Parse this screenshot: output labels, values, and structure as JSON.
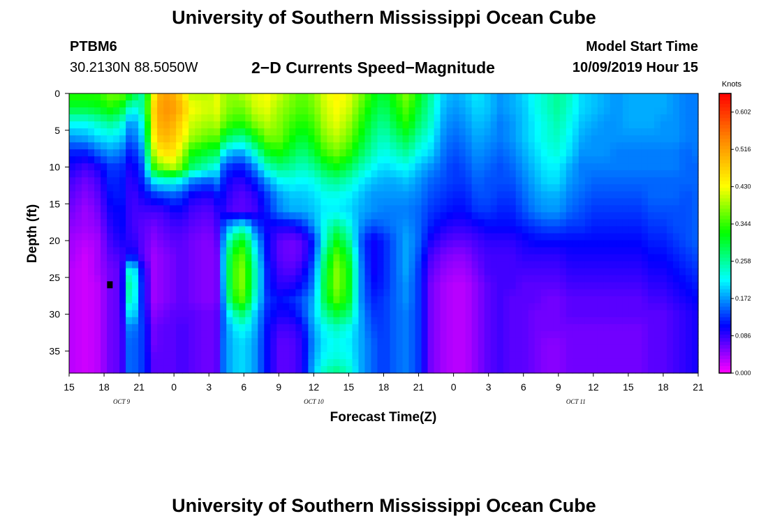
{
  "header": {
    "title_top": "University of Southern Mississippi Ocean Cube",
    "title_bottom": "University of Southern Mississippi Ocean Cube",
    "station": "PTBM6",
    "coords": "30.2130N 88.5050W",
    "chart_title": "2−D Currents Speed−Magnitude",
    "model_label": "Model Start Time",
    "model_time": "10/09/2019 Hour 15"
  },
  "chart_data": {
    "type": "heatmap",
    "title": "2−D Currents Speed−Magnitude",
    "xlabel": "Forecast Time(Z)",
    "ylabel": "Depth (ft)",
    "x_tick_labels": [
      "15",
      "18",
      "21",
      "0",
      "3",
      "6",
      "9",
      "12",
      "15",
      "18",
      "21",
      "0",
      "3",
      "6",
      "9",
      "12",
      "15",
      "18",
      "21"
    ],
    "x_range_hours": [
      0,
      54
    ],
    "date_labels": [
      {
        "text": "OCT 9",
        "hour": 4.5
      },
      {
        "text": "OCT 10",
        "hour": 21
      },
      {
        "text": "OCT 11",
        "hour": 43.5
      }
    ],
    "y_ticks": [
      0,
      5,
      10,
      15,
      20,
      25,
      30,
      35
    ],
    "ylim": [
      0,
      38
    ],
    "colorbar": {
      "label": "Knots",
      "ticks": [
        "0.602",
        "0.516",
        "0.430",
        "0.344",
        "0.258",
        "0.172",
        "0.086",
        "0.000"
      ],
      "range": [
        0,
        0.645
      ],
      "colors": [
        "#ff00ff",
        "#0000ff",
        "#00ffff",
        "#00ff00",
        "#ffff00",
        "#ff8800",
        "#ff0000"
      ]
    },
    "time_columns": [
      0,
      1.5,
      2.5,
      3.5,
      4.5,
      5,
      5.5,
      6.3,
      7.3,
      8,
      9,
      9.7,
      10.5,
      12,
      12.7,
      13,
      14,
      15,
      16,
      17,
      18,
      19,
      20,
      21,
      22,
      23,
      24,
      25,
      26,
      27,
      28,
      29,
      30,
      31,
      32,
      33,
      34,
      35,
      36,
      37,
      38,
      39,
      40,
      41,
      42,
      43,
      44,
      45,
      46,
      47,
      48,
      49,
      50,
      51,
      52,
      53,
      54
    ],
    "depth_rows": [
      0,
      2,
      4,
      6,
      8,
      10,
      12,
      14,
      16,
      18,
      20,
      22,
      24,
      26,
      28,
      30,
      32,
      34,
      36,
      38
    ],
    "speed_knots": [
      [
        0.34,
        0.34,
        0.34,
        0.37,
        0.37,
        0.34,
        0.31,
        0.25,
        0.44,
        0.52,
        0.5,
        0.46,
        0.4,
        0.4,
        0.42,
        0.4,
        0.38,
        0.4,
        0.42,
        0.43,
        0.41,
        0.38,
        0.36,
        0.38,
        0.42,
        0.44,
        0.42,
        0.38,
        0.33,
        0.3,
        0.34,
        0.38,
        0.32,
        0.26,
        0.2,
        0.18,
        0.19,
        0.21,
        0.19,
        0.17,
        0.18,
        0.2,
        0.22,
        0.24,
        0.26,
        0.24,
        0.2,
        0.19,
        0.18,
        0.17,
        0.18,
        0.18,
        0.18,
        0.18,
        0.17,
        0.16,
        0.16
      ],
      [
        0.3,
        0.3,
        0.31,
        0.33,
        0.31,
        0.25,
        0.22,
        0.26,
        0.47,
        0.53,
        0.52,
        0.49,
        0.43,
        0.41,
        0.42,
        0.4,
        0.37,
        0.37,
        0.41,
        0.42,
        0.39,
        0.37,
        0.35,
        0.37,
        0.41,
        0.43,
        0.41,
        0.36,
        0.31,
        0.28,
        0.32,
        0.36,
        0.3,
        0.25,
        0.19,
        0.17,
        0.18,
        0.2,
        0.19,
        0.17,
        0.18,
        0.19,
        0.22,
        0.24,
        0.26,
        0.23,
        0.2,
        0.19,
        0.18,
        0.17,
        0.18,
        0.18,
        0.18,
        0.18,
        0.17,
        0.16,
        0.16
      ],
      [
        0.22,
        0.22,
        0.24,
        0.26,
        0.24,
        0.18,
        0.17,
        0.22,
        0.46,
        0.52,
        0.5,
        0.46,
        0.41,
        0.39,
        0.4,
        0.38,
        0.34,
        0.34,
        0.38,
        0.4,
        0.38,
        0.35,
        0.33,
        0.35,
        0.4,
        0.42,
        0.39,
        0.34,
        0.29,
        0.26,
        0.3,
        0.34,
        0.28,
        0.24,
        0.18,
        0.16,
        0.17,
        0.19,
        0.18,
        0.16,
        0.17,
        0.19,
        0.21,
        0.23,
        0.25,
        0.22,
        0.19,
        0.18,
        0.17,
        0.17,
        0.18,
        0.18,
        0.18,
        0.17,
        0.17,
        0.16,
        0.16
      ],
      [
        0.17,
        0.18,
        0.2,
        0.21,
        0.2,
        0.15,
        0.15,
        0.2,
        0.44,
        0.5,
        0.48,
        0.44,
        0.39,
        0.36,
        0.36,
        0.32,
        0.27,
        0.26,
        0.32,
        0.37,
        0.37,
        0.33,
        0.3,
        0.33,
        0.38,
        0.4,
        0.37,
        0.32,
        0.27,
        0.24,
        0.27,
        0.3,
        0.25,
        0.22,
        0.17,
        0.15,
        0.16,
        0.18,
        0.17,
        0.16,
        0.17,
        0.19,
        0.21,
        0.23,
        0.24,
        0.21,
        0.18,
        0.17,
        0.17,
        0.17,
        0.17,
        0.17,
        0.17,
        0.17,
        0.17,
        0.16,
        0.16
      ],
      [
        0.12,
        0.12,
        0.15,
        0.17,
        0.16,
        0.12,
        0.12,
        0.17,
        0.4,
        0.46,
        0.45,
        0.4,
        0.33,
        0.3,
        0.29,
        0.23,
        0.18,
        0.18,
        0.24,
        0.31,
        0.33,
        0.3,
        0.27,
        0.3,
        0.35,
        0.37,
        0.34,
        0.29,
        0.25,
        0.22,
        0.24,
        0.26,
        0.22,
        0.2,
        0.16,
        0.14,
        0.15,
        0.17,
        0.16,
        0.15,
        0.16,
        0.18,
        0.2,
        0.22,
        0.23,
        0.2,
        0.17,
        0.17,
        0.17,
        0.16,
        0.16,
        0.16,
        0.16,
        0.16,
        0.16,
        0.15,
        0.16
      ],
      [
        0.1,
        0.08,
        0.1,
        0.13,
        0.13,
        0.1,
        0.1,
        0.14,
        0.34,
        0.38,
        0.4,
        0.36,
        0.28,
        0.24,
        0.22,
        0.16,
        0.12,
        0.12,
        0.17,
        0.24,
        0.27,
        0.26,
        0.24,
        0.26,
        0.3,
        0.32,
        0.29,
        0.25,
        0.22,
        0.2,
        0.21,
        0.22,
        0.19,
        0.17,
        0.15,
        0.13,
        0.14,
        0.16,
        0.15,
        0.14,
        0.15,
        0.17,
        0.19,
        0.21,
        0.21,
        0.18,
        0.16,
        0.16,
        0.16,
        0.16,
        0.16,
        0.16,
        0.16,
        0.16,
        0.16,
        0.15,
        0.15
      ],
      [
        0.08,
        0.06,
        0.08,
        0.12,
        0.12,
        0.09,
        0.09,
        0.12,
        0.2,
        0.22,
        0.22,
        0.2,
        0.16,
        0.14,
        0.16,
        0.13,
        0.09,
        0.09,
        0.12,
        0.17,
        0.21,
        0.22,
        0.21,
        0.22,
        0.25,
        0.26,
        0.24,
        0.21,
        0.19,
        0.18,
        0.18,
        0.19,
        0.17,
        0.15,
        0.14,
        0.13,
        0.13,
        0.15,
        0.14,
        0.14,
        0.14,
        0.16,
        0.18,
        0.2,
        0.2,
        0.17,
        0.16,
        0.15,
        0.15,
        0.15,
        0.15,
        0.15,
        0.15,
        0.15,
        0.15,
        0.15,
        0.15
      ],
      [
        0.07,
        0.05,
        0.07,
        0.11,
        0.12,
        0.09,
        0.08,
        0.1,
        0.12,
        0.13,
        0.14,
        0.13,
        0.1,
        0.09,
        0.11,
        0.11,
        0.08,
        0.07,
        0.09,
        0.13,
        0.17,
        0.19,
        0.19,
        0.2,
        0.22,
        0.22,
        0.21,
        0.19,
        0.17,
        0.17,
        0.17,
        0.17,
        0.16,
        0.14,
        0.13,
        0.12,
        0.12,
        0.14,
        0.14,
        0.13,
        0.13,
        0.15,
        0.17,
        0.18,
        0.18,
        0.16,
        0.15,
        0.14,
        0.14,
        0.14,
        0.14,
        0.14,
        0.15,
        0.15,
        0.15,
        0.14,
        0.15
      ],
      [
        0.06,
        0.04,
        0.06,
        0.1,
        0.11,
        0.09,
        0.08,
        0.08,
        0.08,
        0.08,
        0.1,
        0.1,
        0.08,
        0.07,
        0.09,
        0.1,
        0.07,
        0.07,
        0.08,
        0.12,
        0.16,
        0.18,
        0.18,
        0.19,
        0.21,
        0.21,
        0.2,
        0.18,
        0.17,
        0.16,
        0.16,
        0.16,
        0.15,
        0.13,
        0.12,
        0.11,
        0.11,
        0.13,
        0.13,
        0.12,
        0.12,
        0.14,
        0.16,
        0.17,
        0.17,
        0.15,
        0.14,
        0.13,
        0.13,
        0.13,
        0.13,
        0.13,
        0.14,
        0.14,
        0.14,
        0.14,
        0.15
      ],
      [
        0.05,
        0.04,
        0.05,
        0.09,
        0.11,
        0.09,
        0.08,
        0.07,
        0.06,
        0.07,
        0.08,
        0.08,
        0.07,
        0.06,
        0.08,
        0.12,
        0.19,
        0.22,
        0.14,
        0.1,
        0.1,
        0.1,
        0.12,
        0.17,
        0.23,
        0.27,
        0.23,
        0.17,
        0.14,
        0.15,
        0.16,
        0.17,
        0.15,
        0.12,
        0.1,
        0.09,
        0.09,
        0.1,
        0.11,
        0.11,
        0.11,
        0.12,
        0.13,
        0.14,
        0.14,
        0.13,
        0.13,
        0.12,
        0.12,
        0.12,
        0.12,
        0.12,
        0.13,
        0.13,
        0.14,
        0.14,
        0.15
      ],
      [
        0.04,
        0.03,
        0.04,
        0.08,
        0.1,
        0.09,
        0.09,
        0.07,
        0.05,
        0.06,
        0.07,
        0.07,
        0.06,
        0.05,
        0.07,
        0.13,
        0.28,
        0.32,
        0.19,
        0.11,
        0.07,
        0.06,
        0.07,
        0.12,
        0.24,
        0.32,
        0.26,
        0.15,
        0.1,
        0.12,
        0.15,
        0.18,
        0.15,
        0.1,
        0.08,
        0.07,
        0.07,
        0.08,
        0.09,
        0.09,
        0.09,
        0.1,
        0.11,
        0.11,
        0.11,
        0.11,
        0.11,
        0.11,
        0.11,
        0.11,
        0.11,
        0.11,
        0.12,
        0.12,
        0.13,
        0.14,
        0.15
      ],
      [
        0.04,
        0.02,
        0.04,
        0.07,
        0.08,
        0.1,
        0.11,
        0.07,
        0.04,
        0.05,
        0.06,
        0.07,
        0.06,
        0.05,
        0.06,
        0.14,
        0.33,
        0.36,
        0.22,
        0.11,
        0.07,
        0.06,
        0.07,
        0.13,
        0.28,
        0.36,
        0.3,
        0.16,
        0.1,
        0.12,
        0.15,
        0.18,
        0.14,
        0.08,
        0.06,
        0.05,
        0.05,
        0.07,
        0.08,
        0.08,
        0.08,
        0.09,
        0.09,
        0.09,
        0.09,
        0.1,
        0.1,
        0.1,
        0.1,
        0.1,
        0.1,
        0.1,
        0.11,
        0.11,
        0.12,
        0.13,
        0.14
      ],
      [
        0.03,
        0.02,
        0.04,
        0.06,
        0.07,
        0.22,
        0.23,
        0.1,
        0.04,
        0.05,
        0.06,
        0.07,
        0.06,
        0.05,
        0.06,
        0.14,
        0.34,
        0.38,
        0.24,
        0.12,
        0.08,
        0.07,
        0.09,
        0.15,
        0.3,
        0.38,
        0.32,
        0.17,
        0.1,
        0.12,
        0.15,
        0.18,
        0.13,
        0.07,
        0.05,
        0.04,
        0.04,
        0.06,
        0.08,
        0.08,
        0.08,
        0.08,
        0.08,
        0.08,
        0.08,
        0.09,
        0.09,
        0.09,
        0.09,
        0.09,
        0.09,
        0.09,
        0.1,
        0.1,
        0.11,
        0.12,
        0.13
      ],
      [
        0.03,
        0.02,
        0.03,
        0.06,
        0.07,
        0.25,
        0.25,
        0.11,
        0.04,
        0.05,
        0.06,
        0.07,
        0.06,
        0.05,
        0.06,
        0.13,
        0.34,
        0.38,
        0.24,
        0.12,
        0.09,
        0.09,
        0.11,
        0.16,
        0.31,
        0.38,
        0.32,
        0.17,
        0.11,
        0.12,
        0.15,
        0.17,
        0.13,
        0.06,
        0.04,
        0.03,
        0.03,
        0.05,
        0.07,
        0.08,
        0.08,
        0.07,
        0.07,
        0.07,
        0.07,
        0.08,
        0.08,
        0.08,
        0.08,
        0.08,
        0.08,
        0.08,
        0.09,
        0.09,
        0.1,
        0.11,
        0.12
      ],
      [
        0.03,
        0.02,
        0.03,
        0.06,
        0.07,
        0.24,
        0.24,
        0.11,
        0.04,
        0.05,
        0.06,
        0.07,
        0.06,
        0.05,
        0.06,
        0.12,
        0.32,
        0.36,
        0.22,
        0.13,
        0.11,
        0.12,
        0.14,
        0.18,
        0.3,
        0.36,
        0.31,
        0.17,
        0.12,
        0.13,
        0.15,
        0.17,
        0.13,
        0.06,
        0.04,
        0.03,
        0.03,
        0.05,
        0.07,
        0.08,
        0.07,
        0.07,
        0.07,
        0.06,
        0.06,
        0.07,
        0.07,
        0.07,
        0.07,
        0.07,
        0.07,
        0.07,
        0.08,
        0.08,
        0.09,
        0.1,
        0.11
      ],
      [
        0.03,
        0.02,
        0.03,
        0.06,
        0.07,
        0.2,
        0.21,
        0.12,
        0.05,
        0.06,
        0.07,
        0.07,
        0.07,
        0.06,
        0.07,
        0.12,
        0.24,
        0.28,
        0.19,
        0.12,
        0.1,
        0.1,
        0.13,
        0.19,
        0.26,
        0.3,
        0.27,
        0.18,
        0.13,
        0.13,
        0.15,
        0.16,
        0.13,
        0.06,
        0.04,
        0.03,
        0.03,
        0.05,
        0.07,
        0.08,
        0.07,
        0.07,
        0.06,
        0.06,
        0.06,
        0.07,
        0.07,
        0.07,
        0.07,
        0.07,
        0.07,
        0.07,
        0.07,
        0.07,
        0.08,
        0.09,
        0.1
      ],
      [
        0.03,
        0.02,
        0.03,
        0.06,
        0.07,
        0.16,
        0.16,
        0.13,
        0.06,
        0.07,
        0.07,
        0.08,
        0.07,
        0.06,
        0.07,
        0.13,
        0.2,
        0.22,
        0.18,
        0.11,
        0.08,
        0.08,
        0.1,
        0.18,
        0.22,
        0.24,
        0.22,
        0.18,
        0.14,
        0.13,
        0.15,
        0.16,
        0.13,
        0.06,
        0.04,
        0.03,
        0.03,
        0.05,
        0.07,
        0.08,
        0.07,
        0.07,
        0.06,
        0.06,
        0.06,
        0.06,
        0.06,
        0.06,
        0.06,
        0.06,
        0.06,
        0.06,
        0.07,
        0.07,
        0.08,
        0.09,
        0.1
      ],
      [
        0.03,
        0.02,
        0.03,
        0.06,
        0.07,
        0.15,
        0.15,
        0.13,
        0.06,
        0.07,
        0.07,
        0.08,
        0.07,
        0.06,
        0.07,
        0.14,
        0.19,
        0.2,
        0.17,
        0.11,
        0.07,
        0.07,
        0.09,
        0.17,
        0.21,
        0.22,
        0.21,
        0.18,
        0.15,
        0.13,
        0.15,
        0.16,
        0.13,
        0.06,
        0.04,
        0.03,
        0.03,
        0.05,
        0.07,
        0.08,
        0.07,
        0.07,
        0.06,
        0.05,
        0.05,
        0.06,
        0.06,
        0.06,
        0.06,
        0.06,
        0.06,
        0.06,
        0.07,
        0.07,
        0.08,
        0.09,
        0.1
      ],
      [
        0.03,
        0.02,
        0.03,
        0.06,
        0.07,
        0.15,
        0.15,
        0.13,
        0.07,
        0.07,
        0.07,
        0.08,
        0.07,
        0.06,
        0.07,
        0.14,
        0.19,
        0.2,
        0.17,
        0.11,
        0.07,
        0.07,
        0.09,
        0.18,
        0.22,
        0.23,
        0.22,
        0.18,
        0.15,
        0.13,
        0.15,
        0.16,
        0.13,
        0.06,
        0.04,
        0.03,
        0.03,
        0.05,
        0.07,
        0.08,
        0.07,
        0.07,
        0.06,
        0.05,
        0.05,
        0.06,
        0.06,
        0.06,
        0.06,
        0.06,
        0.06,
        0.06,
        0.07,
        0.07,
        0.08,
        0.09,
        0.1
      ],
      [
        0.03,
        0.02,
        0.03,
        0.06,
        0.07,
        0.15,
        0.15,
        0.13,
        0.07,
        0.07,
        0.07,
        0.08,
        0.07,
        0.06,
        0.07,
        0.14,
        0.19,
        0.2,
        0.17,
        0.11,
        0.07,
        0.07,
        0.09,
        0.19,
        0.25,
        0.27,
        0.24,
        0.18,
        0.15,
        0.13,
        0.15,
        0.16,
        0.13,
        0.06,
        0.04,
        0.03,
        0.03,
        0.05,
        0.07,
        0.08,
        0.07,
        0.07,
        0.06,
        0.05,
        0.05,
        0.06,
        0.06,
        0.06,
        0.06,
        0.06,
        0.06,
        0.06,
        0.07,
        0.07,
        0.08,
        0.09,
        0.1
      ]
    ],
    "marker": {
      "hour": 3.5,
      "depth_ft": 26
    }
  }
}
